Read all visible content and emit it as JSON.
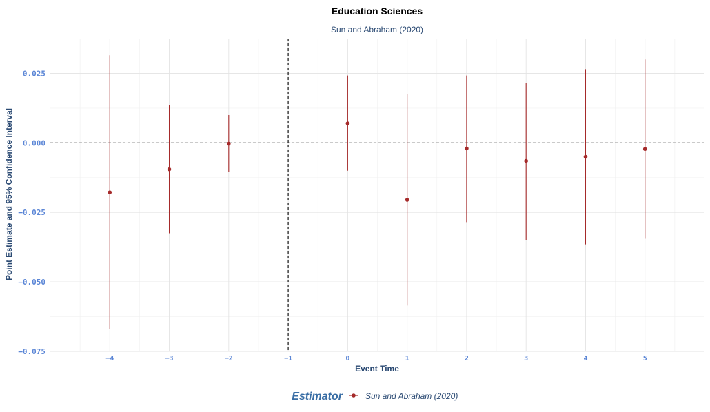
{
  "chart_data": {
    "type": "scatter",
    "title": "Education Sciences",
    "subtitle": "Sun and Abraham (2020)",
    "xlabel": "Event Time",
    "ylabel": "Point Estimate and 95% Confidence Interval",
    "xlim": [
      -5,
      6
    ],
    "ylim": [
      -0.075,
      0.0375
    ],
    "x_ticks": [
      -4,
      -3,
      -2,
      -1,
      0,
      1,
      2,
      3,
      4,
      5
    ],
    "x_tick_labels": [
      "−4",
      "−3",
      "−2",
      "−1",
      "0",
      "1",
      "2",
      "3",
      "4",
      "5"
    ],
    "y_ticks": [
      -0.075,
      -0.05,
      -0.025,
      0.0,
      0.025
    ],
    "y_tick_labels": [
      "−0.075",
      "−0.050",
      "−0.025",
      "0.000",
      "0.025"
    ],
    "reference_lines": {
      "horizontal_y": 0,
      "vertical_x": -1
    },
    "grid": true,
    "legend": {
      "title": "Estimator",
      "position": "bottom"
    },
    "series": [
      {
        "name": "Sun and Abraham (2020)",
        "color": "#a52a2a",
        "points": [
          {
            "x": -4,
            "y": -0.0178,
            "lower": -0.067,
            "upper": 0.0315
          },
          {
            "x": -3,
            "y": -0.0095,
            "lower": -0.0325,
            "upper": 0.0135
          },
          {
            "x": -2,
            "y": -0.0003,
            "lower": -0.0105,
            "upper": 0.01
          },
          {
            "x": 0,
            "y": 0.007,
            "lower": -0.01,
            "upper": 0.0242
          },
          {
            "x": 1,
            "y": -0.0205,
            "lower": -0.0585,
            "upper": 0.0175
          },
          {
            "x": 2,
            "y": -0.002,
            "lower": -0.0285,
            "upper": 0.0242
          },
          {
            "x": 3,
            "y": -0.0065,
            "lower": -0.035,
            "upper": 0.0215
          },
          {
            "x": 4,
            "y": -0.005,
            "lower": -0.0365,
            "upper": 0.0265
          },
          {
            "x": 5,
            "y": -0.0022,
            "lower": -0.0345,
            "upper": 0.03
          }
        ]
      }
    ]
  }
}
